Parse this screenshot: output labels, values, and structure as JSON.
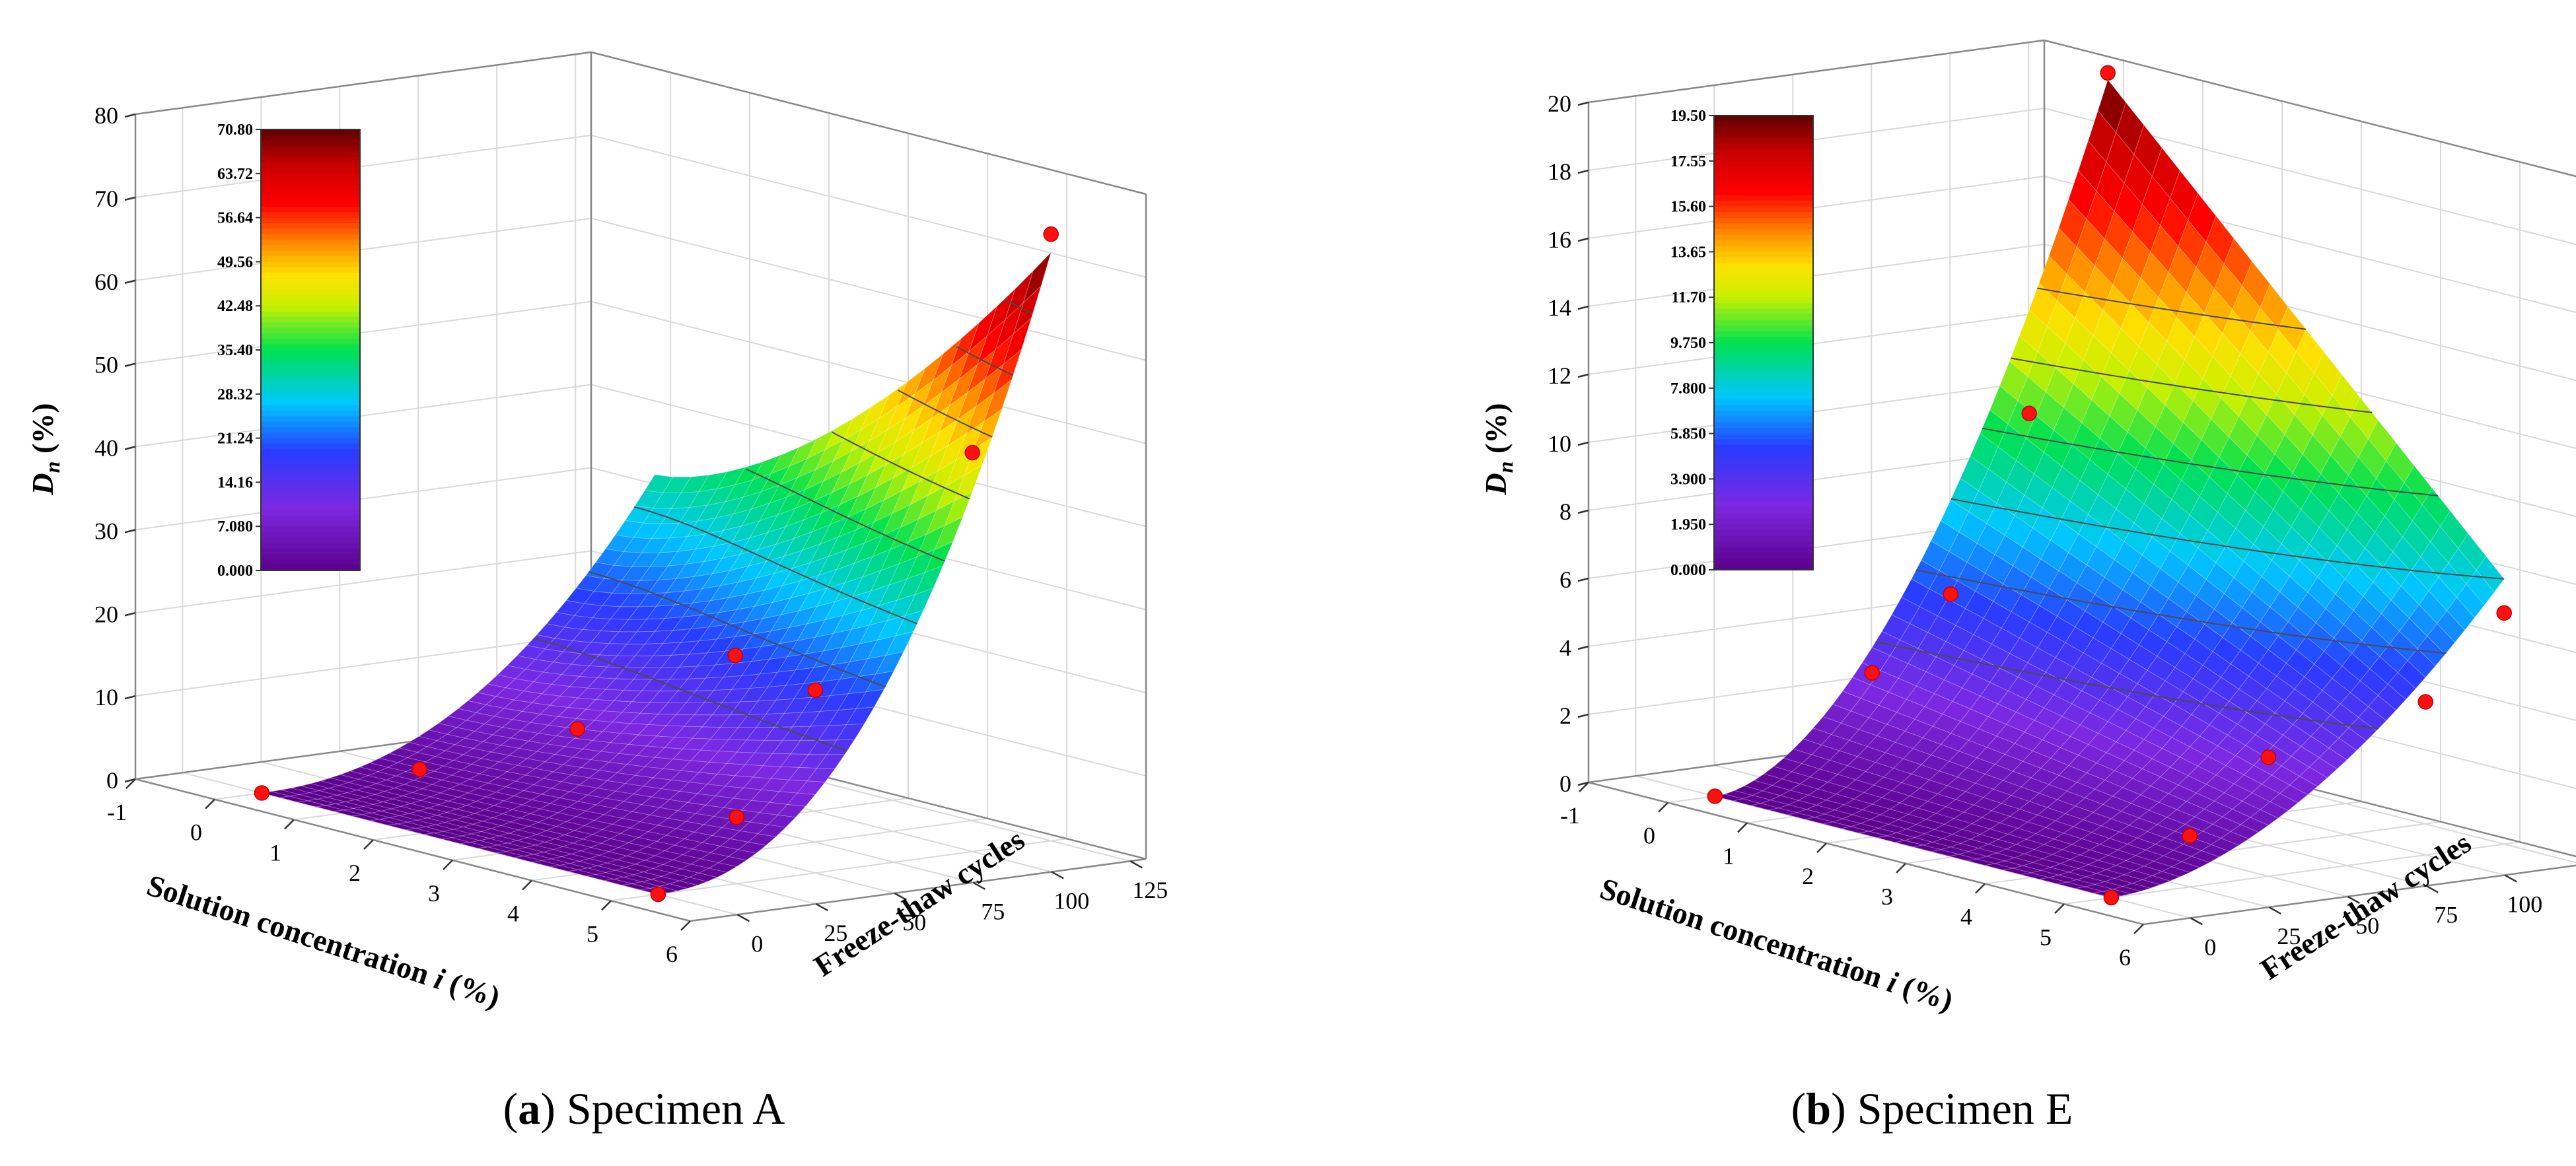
{
  "chart_data": [
    {
      "type": "surface3d",
      "id": "a",
      "caption_letter": "a",
      "caption_text": "Specimen A",
      "zlabel_main": "D",
      "zlabel_sub": "n",
      "zlabel_unit": " (%)",
      "xlabel": "Solution concentration i (%)",
      "xlabel_main": "Solution concentration ",
      "xlabel_var": "i",
      "xlabel_unit": " (%)",
      "ylabel": "Freeze-thaw cycles",
      "x_ticks": [
        "-1",
        "0",
        "1",
        "2",
        "3",
        "4",
        "5",
        "6"
      ],
      "y_ticks": [
        "0",
        "25",
        "50",
        "75",
        "100",
        "125"
      ],
      "z_ticks": [
        "0",
        "10",
        "20",
        "30",
        "40",
        "50",
        "60",
        "70",
        "80"
      ],
      "xlim": [
        -1,
        6
      ],
      "ylim": [
        -15,
        130
      ],
      "zlim": [
        0,
        80
      ],
      "colorbar_ticks": [
        "70.80",
        "63.72",
        "56.64",
        "49.56",
        "42.48",
        "35.40",
        "28.32",
        "21.24",
        "14.16",
        "7.080",
        "0.000"
      ],
      "colorbar_range": [
        0,
        70.8
      ],
      "points": [
        {
          "x": 0,
          "y": 0,
          "z": 0
        },
        {
          "x": 1,
          "y": 25,
          "z": 4
        },
        {
          "x": 2,
          "y": 50,
          "z": 10
        },
        {
          "x": 3,
          "y": 75,
          "z": 20
        },
        {
          "x": 5,
          "y": 0,
          "z": 0
        },
        {
          "x": 5,
          "y": 25,
          "z": 8
        },
        {
          "x": 5,
          "y": 50,
          "z": 22
        },
        {
          "x": 5,
          "y": 100,
          "z": 48
        },
        {
          "x": 5,
          "y": 125,
          "z": 73
        }
      ],
      "surface": {
        "xmin": 0,
        "xmax": 5,
        "ymin": 0,
        "ymax": 125,
        "z_at_max": 70.8,
        "power_cycles": 2.2,
        "power_conc": 1.6
      },
      "contour_levels": [
        14.16,
        21.24,
        28.32,
        35.4,
        42.48,
        49.56,
        56.64,
        63.72
      ]
    },
    {
      "type": "surface3d",
      "id": "b",
      "caption_letter": "b",
      "caption_text": "Specimen E",
      "zlabel_main": "D",
      "zlabel_sub": "n",
      "zlabel_unit": " (%)",
      "xlabel": "Solution concentration i (%)",
      "xlabel_main": "Solution concentration ",
      "xlabel_var": "i",
      "xlabel_unit": " (%)",
      "ylabel": "Freeze-thaw cycles",
      "x_ticks": [
        "-1",
        "0",
        "1",
        "2",
        "3",
        "4",
        "5",
        "6"
      ],
      "y_ticks": [
        "0",
        "25",
        "50",
        "75",
        "100",
        "125"
      ],
      "z_ticks": [
        "0",
        "2",
        "4",
        "6",
        "8",
        "10",
        "12",
        "14",
        "16",
        "18",
        "20"
      ],
      "xlim": [
        -1,
        6
      ],
      "ylim": [
        -15,
        130
      ],
      "zlim": [
        0,
        20
      ],
      "colorbar_ticks": [
        "19.50",
        "17.55",
        "15.60",
        "13.65",
        "11.70",
        "9.750",
        "7.800",
        "5.850",
        "3.900",
        "1.950",
        "0.000"
      ],
      "colorbar_range": [
        0,
        19.5
      ],
      "points": [
        {
          "x": 0,
          "y": 0,
          "z": 0
        },
        {
          "x": 0,
          "y": 50,
          "z": 3
        },
        {
          "x": 0,
          "y": 75,
          "z": 5
        },
        {
          "x": 0,
          "y": 100,
          "z": 10
        },
        {
          "x": 0,
          "y": 125,
          "z": 19.7
        },
        {
          "x": 5,
          "y": 0,
          "z": 0
        },
        {
          "x": 5,
          "y": 25,
          "z": 1.5
        },
        {
          "x": 5,
          "y": 50,
          "z": 3.5
        },
        {
          "x": 5,
          "y": 100,
          "z": 4.5
        },
        {
          "x": 5,
          "y": 125,
          "z": 6.8
        }
      ],
      "surface": {
        "xmin": 0,
        "xmax": 5,
        "ymin": 0,
        "ymax": 125,
        "z_far_left": 19.5,
        "z_far_right": 7.8,
        "power_cycles": 1.8
      },
      "contour_levels": [
        3.9,
        5.85,
        7.8,
        9.75,
        11.7,
        13.65
      ]
    }
  ]
}
